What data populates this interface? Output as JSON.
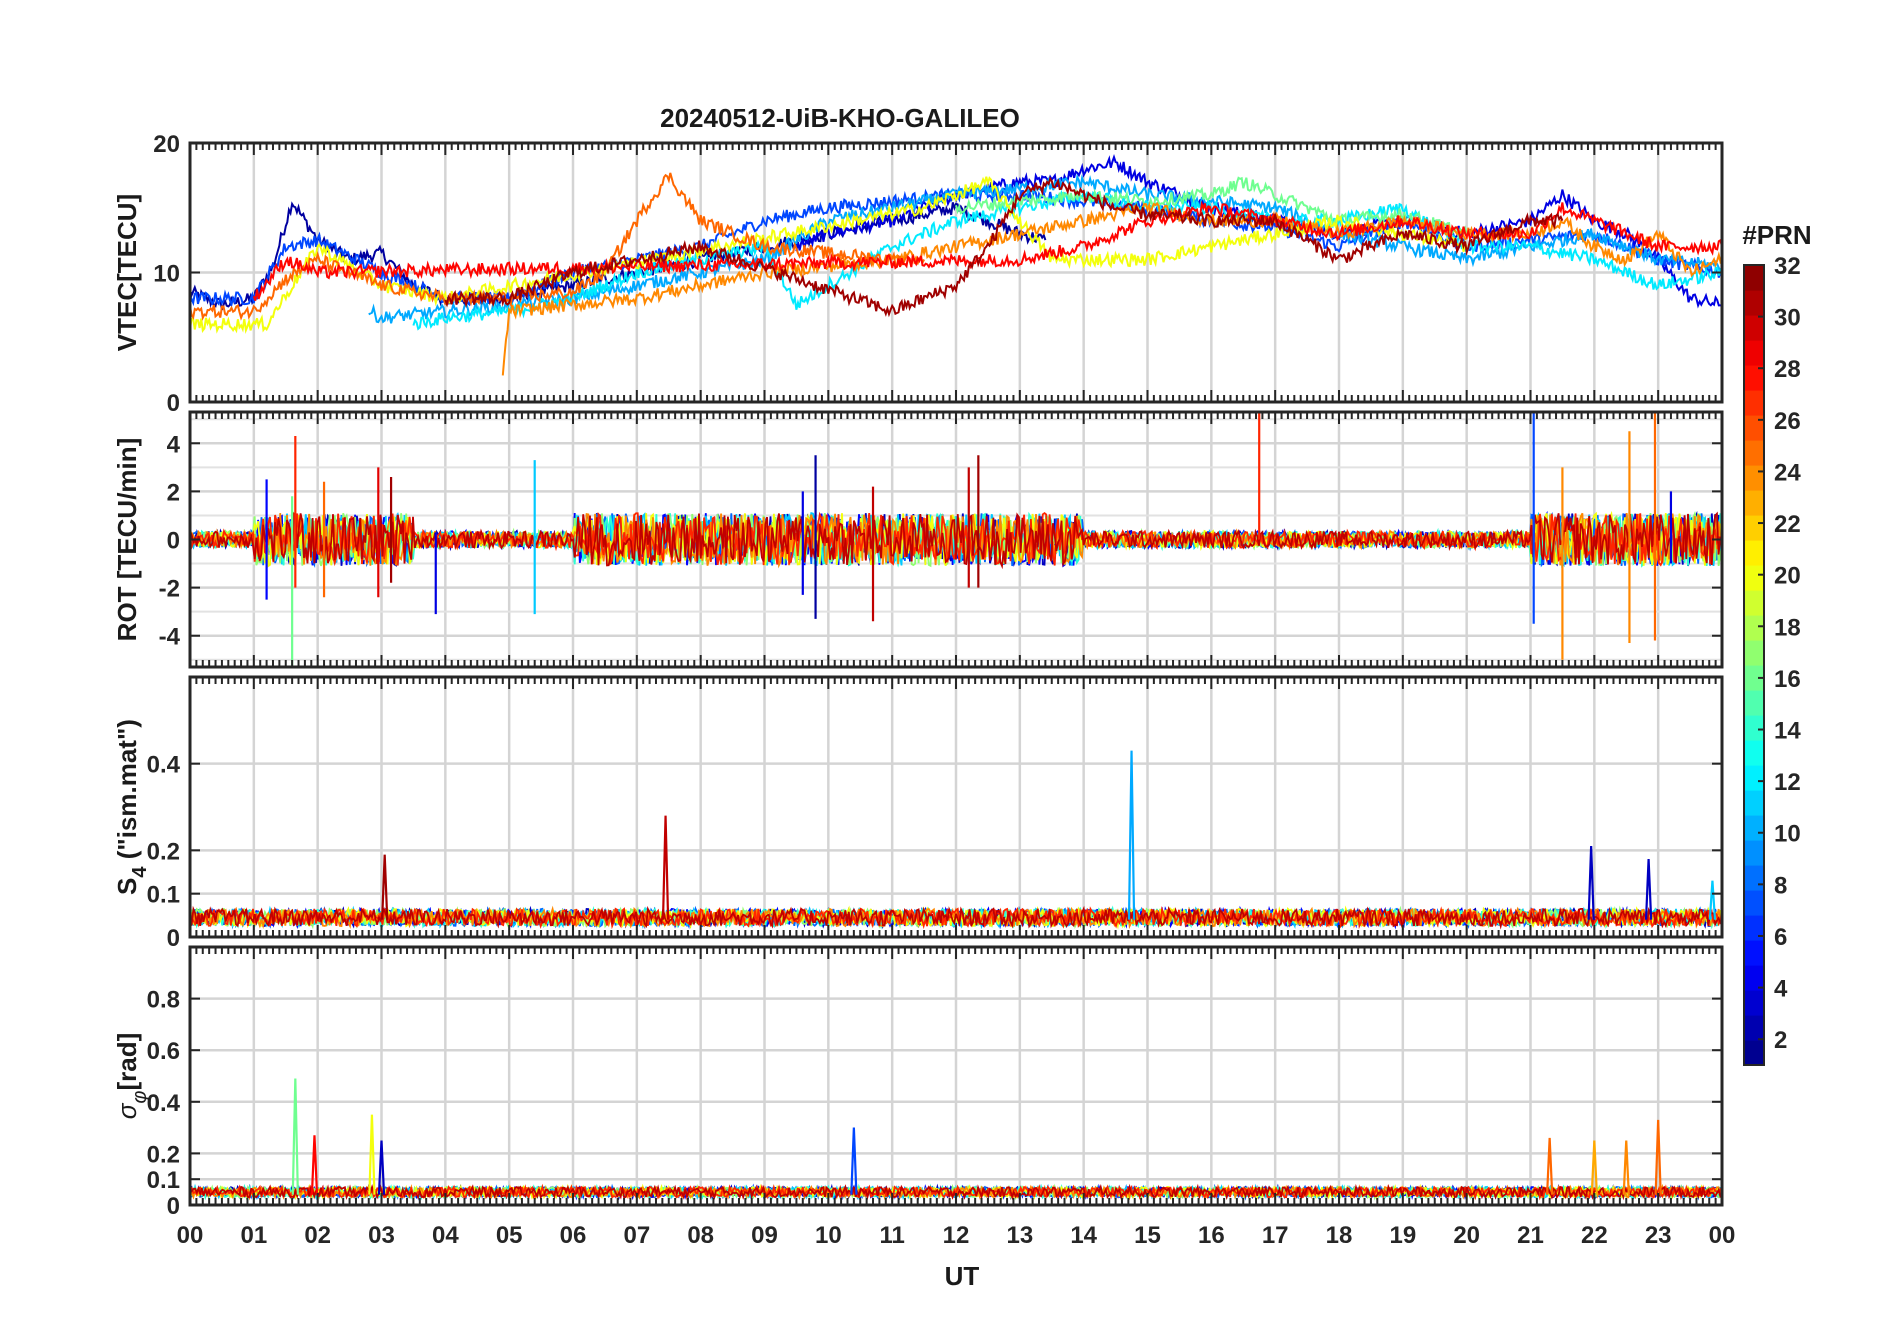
{
  "figure": {
    "title": "20240512-UiB-KHO-GALILEO",
    "xlabel": "UT",
    "x_tick_labels": [
      "00",
      "01",
      "02",
      "03",
      "04",
      "05",
      "06",
      "07",
      "08",
      "09",
      "10",
      "11",
      "12",
      "13",
      "14",
      "15",
      "16",
      "17",
      "18",
      "19",
      "20",
      "21",
      "22",
      "23",
      "00"
    ],
    "colorbar": {
      "label": "#PRN",
      "range": [
        1,
        32
      ],
      "tick_values": [
        2,
        4,
        6,
        8,
        10,
        12,
        14,
        16,
        18,
        20,
        22,
        24,
        26,
        28,
        30,
        32
      ],
      "tick_labels": [
        "2",
        "4",
        "6",
        "8",
        "10",
        "12",
        "14",
        "16",
        "18",
        "20",
        "22",
        "24",
        "26",
        "28",
        "30",
        "32"
      ],
      "colormap": "jet"
    }
  },
  "chart_data": [
    {
      "type": "line",
      "panel": "vtec",
      "ylabel": "VTEC[TECU]",
      "xlim": [
        0,
        24
      ],
      "ylim": [
        0,
        20
      ],
      "y_ticks": [
        0,
        10,
        20
      ],
      "y_tick_labels": [
        "0",
        "10",
        "20"
      ],
      "grid": true,
      "series": [
        {
          "prn": 2,
          "x": [
            0,
            0.5,
            1,
            1.3,
            1.6,
            2,
            2.5,
            3,
            3.5,
            4,
            5,
            6,
            7,
            8,
            9,
            10,
            11,
            12,
            12.5,
            13,
            13.4
          ],
          "values": [
            8.5,
            7.5,
            8,
            10.5,
            15.5,
            12.5,
            11,
            11.5,
            9,
            8,
            8,
            9,
            10,
            11,
            12,
            13,
            14,
            15,
            14,
            13,
            12.5
          ]
        },
        {
          "prn": 4,
          "x": [
            9.5,
            10,
            11,
            12,
            13,
            13.5,
            14,
            14.5,
            15,
            16,
            17,
            18,
            19,
            20,
            21,
            21.5,
            22,
            22.5,
            23,
            23.5,
            24
          ],
          "values": [
            12,
            13,
            14,
            16,
            17,
            17,
            18,
            18.5,
            17,
            15,
            14,
            13,
            14,
            13,
            14,
            16,
            14,
            13,
            11,
            8,
            7.5
          ]
        },
        {
          "prn": 7,
          "x": [
            0,
            1,
            1.5,
            2,
            3,
            4,
            5,
            6,
            7,
            8,
            9,
            10,
            11,
            12,
            13,
            14,
            15,
            16,
            17,
            18,
            19,
            20,
            21,
            22,
            23,
            24
          ],
          "values": [
            8,
            8,
            12,
            12.5,
            10,
            8,
            8,
            10,
            11,
            12,
            14,
            15,
            15.5,
            16,
            16,
            15.5,
            15,
            14,
            13.5,
            12,
            14,
            12,
            12.5,
            13,
            11,
            10
          ]
        },
        {
          "prn": 10,
          "x": [
            2.8,
            3,
            4,
            5,
            6,
            7,
            8,
            9,
            10,
            11,
            12,
            13,
            14,
            15,
            16,
            17,
            18,
            19,
            20,
            21,
            22,
            23,
            24
          ],
          "values": [
            7,
            6.5,
            7,
            7.5,
            8,
            9,
            10,
            11,
            14,
            15,
            16,
            16.5,
            17,
            16,
            15.5,
            15,
            13,
            12,
            11,
            12,
            13,
            11,
            10.5
          ]
        },
        {
          "prn": 12,
          "x": [
            3.5,
            4,
            5,
            6,
            7,
            8,
            9,
            9.5,
            10,
            11,
            12,
            12.5,
            13,
            14,
            15,
            16,
            17,
            18,
            19,
            20,
            21,
            22,
            23,
            24
          ],
          "values": [
            6,
            6.5,
            7,
            8,
            10,
            11,
            12,
            7.5,
            9,
            12,
            14,
            14.5,
            15,
            16,
            15,
            15,
            14,
            14,
            15,
            12,
            12,
            11,
            9,
            10
          ]
        },
        {
          "prn": 16,
          "x": [
            12,
            14,
            15,
            16,
            16.5,
            17,
            17.5,
            18,
            19,
            20
          ],
          "values": [
            15,
            16,
            15.5,
            16,
            17,
            16,
            15,
            14,
            14.5,
            13
          ]
        },
        {
          "prn": 20,
          "x": [
            0,
            1,
            1.2,
            2,
            3,
            4,
            11.5,
            12,
            12.5,
            13,
            13.5,
            15,
            16,
            17,
            18,
            19,
            20
          ],
          "values": [
            6,
            6,
            6,
            12,
            9,
            8,
            15,
            16,
            17,
            14,
            11,
            11,
            12,
            13,
            14,
            13,
            12
          ]
        },
        {
          "prn": 24,
          "x": [
            4.9,
            5,
            6,
            7,
            8,
            9,
            10,
            11,
            12,
            13,
            14,
            15,
            16,
            17,
            18,
            19,
            20,
            21,
            21.5,
            22,
            22.5,
            23,
            23.5,
            24
          ],
          "values": [
            2,
            7,
            7.5,
            8,
            9,
            10,
            10.5,
            11,
            12,
            13,
            14,
            15,
            14,
            14,
            13,
            14,
            13,
            13,
            14,
            12,
            11,
            13,
            10,
            11
          ]
        },
        {
          "prn": 25,
          "x": [
            0,
            1,
            1.5,
            2,
            3,
            4,
            5,
            6,
            6.5,
            7,
            7.2,
            7.5,
            8,
            9,
            10,
            11,
            11.5
          ],
          "values": [
            7,
            7,
            9.5,
            11,
            9,
            8,
            8,
            8.5,
            10,
            14,
            15.5,
            17.5,
            14,
            12,
            11.5,
            11,
            11
          ]
        },
        {
          "prn": 28,
          "x": [
            1,
            1.5,
            2,
            13,
            14,
            15,
            16,
            17,
            18,
            19,
            20,
            21,
            21.5,
            22,
            22.5,
            23,
            24
          ],
          "values": [
            8,
            11,
            10,
            11,
            12,
            14,
            15,
            14,
            13,
            14,
            13,
            13,
            15,
            14,
            13,
            12,
            12
          ]
        },
        {
          "prn": 31,
          "x": [
            4,
            5,
            6,
            7,
            8,
            11,
            11.5,
            12,
            12.5,
            13,
            13.5,
            14,
            14.5,
            15,
            16,
            17,
            18,
            19,
            20,
            21,
            21.5
          ],
          "values": [
            8,
            8,
            10,
            11,
            12,
            7,
            8,
            9,
            12,
            16,
            17,
            16,
            15,
            14.5,
            14,
            14,
            11,
            13,
            12,
            14,
            14
          ]
        }
      ]
    },
    {
      "type": "line",
      "panel": "rot",
      "ylabel": "ROT [TECU/min]",
      "xlim": [
        0,
        24
      ],
      "ylim": [
        -5.3,
        5.3
      ],
      "y_ticks": [
        -4,
        -2,
        0,
        2,
        4
      ],
      "y_tick_labels": [
        "-4",
        "-2",
        "0",
        "2",
        "4"
      ],
      "grid": true,
      "spikes": [
        {
          "x": 1.2,
          "values": [
            -2.5,
            2.5
          ],
          "prn": 5
        },
        {
          "x": 1.6,
          "values": [
            -5.3,
            1.8
          ],
          "prn": 16
        },
        {
          "x": 1.65,
          "values": [
            -2.0,
            4.3
          ],
          "prn": 27
        },
        {
          "x": 2.1,
          "values": [
            -2.4,
            2.4
          ],
          "prn": 25
        },
        {
          "x": 2.95,
          "values": [
            -2.4,
            3.0
          ],
          "prn": 29
        },
        {
          "x": 3.15,
          "values": [
            -1.8,
            2.6
          ],
          "prn": 31
        },
        {
          "x": 3.85,
          "values": [
            -3.1,
            0.3
          ],
          "prn": 4
        },
        {
          "x": 5.4,
          "values": [
            -3.1,
            3.3
          ],
          "prn": 11
        },
        {
          "x": 9.6,
          "values": [
            -2.3,
            2.0
          ],
          "prn": 4
        },
        {
          "x": 9.8,
          "values": [
            -3.3,
            3.5
          ],
          "prn": 2
        },
        {
          "x": 10.7,
          "values": [
            -3.4,
            2.2
          ],
          "prn": 30
        },
        {
          "x": 12.2,
          "values": [
            -2.0,
            3.0
          ],
          "prn": 30
        },
        {
          "x": 12.35,
          "values": [
            -2.0,
            3.5
          ],
          "prn": 31
        },
        {
          "x": 16.75,
          "values": [
            0,
            5.3
          ],
          "prn": 27
        },
        {
          "x": 21.05,
          "values": [
            -3.5,
            5.3
          ],
          "prn": 7
        },
        {
          "x": 21.5,
          "values": [
            -5.0,
            3.0
          ],
          "prn": 24
        },
        {
          "x": 22.55,
          "values": [
            -4.3,
            4.5
          ],
          "prn": 24
        },
        {
          "x": 22.95,
          "values": [
            -4.2,
            5.3
          ],
          "prn": 25
        },
        {
          "x": 23.2,
          "values": [
            -1.0,
            2.0
          ],
          "prn": 4
        }
      ]
    },
    {
      "type": "line",
      "panel": "s4",
      "ylabel": "S4 (\"ism.mat\")",
      "ylabel_base": "S",
      "ylabel_sub": "4",
      "ylabel_rest": " (\"ism.mat\")",
      "xlim": [
        0,
        24
      ],
      "ylim": [
        0,
        0.6
      ],
      "y_ticks": [
        0,
        0.1,
        0.2,
        0.4
      ],
      "y_tick_labels": [
        "0",
        "0.1",
        "0.2",
        "0.4"
      ],
      "grid": true,
      "spikes": [
        {
          "x": 3.05,
          "value": 0.19,
          "prn": 31
        },
        {
          "x": 7.45,
          "value": 0.28,
          "prn": 30
        },
        {
          "x": 14.75,
          "value": 0.43,
          "prn": 10
        },
        {
          "x": 21.95,
          "value": 0.21,
          "prn": 3
        },
        {
          "x": 22.85,
          "value": 0.18,
          "prn": 3
        },
        {
          "x": 23.85,
          "value": 0.13,
          "prn": 11
        }
      ]
    },
    {
      "type": "line",
      "panel": "sigma_phi",
      "ylabel": "σφ[rad]",
      "ylabel_base": "σ",
      "ylabel_sub": "φ",
      "ylabel_rest": "[rad]",
      "xlim": [
        0,
        24
      ],
      "ylim": [
        0,
        1
      ],
      "y_ticks": [
        0,
        0.1,
        0.2,
        0.4,
        0.6,
        0.8
      ],
      "y_tick_labels": [
        "0",
        "0.1",
        "0.2",
        "0.4",
        "0.6",
        "0.8"
      ],
      "grid": true,
      "spikes": [
        {
          "x": 1.65,
          "value": 0.49,
          "prn": 16
        },
        {
          "x": 1.95,
          "value": 0.27,
          "prn": 28
        },
        {
          "x": 2.85,
          "value": 0.35,
          "prn": 20
        },
        {
          "x": 3.0,
          "value": 0.25,
          "prn": 3
        },
        {
          "x": 10.4,
          "value": 0.3,
          "prn": 7
        },
        {
          "x": 21.3,
          "value": 0.26,
          "prn": 25
        },
        {
          "x": 22.0,
          "value": 0.25,
          "prn": 23
        },
        {
          "x": 22.5,
          "value": 0.25,
          "prn": 24
        },
        {
          "x": 23.0,
          "value": 0.33,
          "prn": 25
        }
      ]
    }
  ]
}
